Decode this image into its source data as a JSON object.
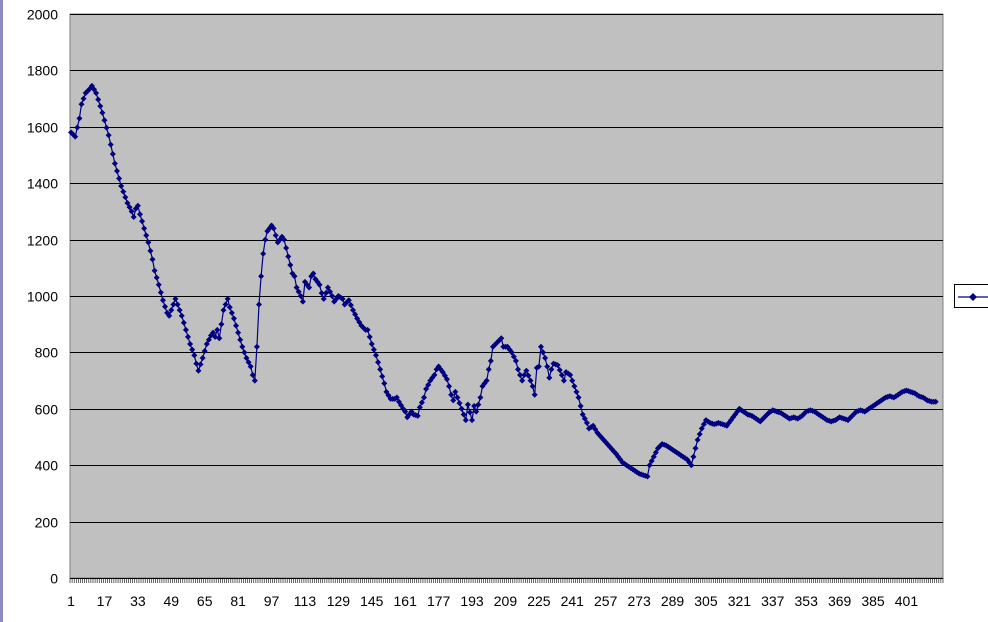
{
  "colors": {
    "plot_background": "#c0c0c0",
    "gridline": "#000000",
    "series": "#000080",
    "left_stripe": "#8c8cc0"
  },
  "legend": {
    "entries": [
      ""
    ],
    "placement": "right"
  },
  "chart_data": {
    "type": "line",
    "title": "",
    "xlabel": "",
    "ylabel": "",
    "grid": true,
    "ylim": [
      0,
      2000
    ],
    "yticks": [
      "0",
      "200",
      "400",
      "600",
      "800",
      "1000",
      "1200",
      "1400",
      "1600",
      "1800",
      "2000"
    ],
    "xticks": [
      "1",
      "17",
      "33",
      "49",
      "65",
      "81",
      "97",
      "113",
      "129",
      "145",
      "161",
      "177",
      "193",
      "209",
      "225",
      "241",
      "257",
      "273",
      "289",
      "305",
      "321",
      "337",
      "353",
      "369",
      "385",
      "401"
    ],
    "x_count": 418,
    "series": [
      {
        "marker": "diamond",
        "anchors": [
          [
            1,
            1580
          ],
          [
            3,
            1565
          ],
          [
            5,
            1630
          ],
          [
            6,
            1680
          ],
          [
            8,
            1720
          ],
          [
            10,
            1735
          ],
          [
            11,
            1745
          ],
          [
            13,
            1720
          ],
          [
            16,
            1650
          ],
          [
            19,
            1570
          ],
          [
            22,
            1470
          ],
          [
            25,
            1390
          ],
          [
            28,
            1330
          ],
          [
            30,
            1300
          ],
          [
            31,
            1280
          ],
          [
            32,
            1310
          ],
          [
            33,
            1320
          ],
          [
            34,
            1290
          ],
          [
            36,
            1240
          ],
          [
            38,
            1190
          ],
          [
            40,
            1130
          ],
          [
            41,
            1090
          ],
          [
            43,
            1040
          ],
          [
            45,
            985
          ],
          [
            47,
            940
          ],
          [
            48,
            930
          ],
          [
            50,
            970
          ],
          [
            51,
            990
          ],
          [
            52,
            970
          ],
          [
            54,
            930
          ],
          [
            56,
            880
          ],
          [
            58,
            830
          ],
          [
            60,
            790
          ],
          [
            61,
            760
          ],
          [
            62,
            735
          ],
          [
            64,
            780
          ],
          [
            66,
            830
          ],
          [
            68,
            860
          ],
          [
            69,
            870
          ],
          [
            70,
            855
          ],
          [
            71,
            880
          ],
          [
            72,
            850
          ],
          [
            73,
            900
          ],
          [
            74,
            950
          ],
          [
            76,
            990
          ],
          [
            77,
            960
          ],
          [
            79,
            920
          ],
          [
            81,
            870
          ],
          [
            83,
            820
          ],
          [
            85,
            780
          ],
          [
            87,
            750
          ],
          [
            88,
            720
          ],
          [
            89,
            700
          ],
          [
            90,
            820
          ],
          [
            91,
            970
          ],
          [
            92,
            1070
          ],
          [
            93,
            1150
          ],
          [
            94,
            1200
          ],
          [
            95,
            1230
          ],
          [
            97,
            1250
          ],
          [
            98,
            1240
          ],
          [
            100,
            1190
          ],
          [
            101,
            1200
          ],
          [
            102,
            1210
          ],
          [
            103,
            1200
          ],
          [
            105,
            1140
          ],
          [
            107,
            1080
          ],
          [
            108,
            1070
          ],
          [
            109,
            1030
          ],
          [
            111,
            1000
          ],
          [
            112,
            980
          ],
          [
            113,
            1050
          ],
          [
            115,
            1030
          ],
          [
            116,
            1070
          ],
          [
            117,
            1080
          ],
          [
            118,
            1060
          ],
          [
            120,
            1040
          ],
          [
            121,
            1010
          ],
          [
            122,
            990
          ],
          [
            124,
            1030
          ],
          [
            126,
            1000
          ],
          [
            127,
            980
          ],
          [
            129,
            1000
          ],
          [
            131,
            990
          ],
          [
            132,
            970
          ],
          [
            134,
            985
          ],
          [
            136,
            950
          ],
          [
            138,
            920
          ],
          [
            140,
            895
          ],
          [
            142,
            880
          ],
          [
            143,
            880
          ],
          [
            145,
            830
          ],
          [
            147,
            790
          ],
          [
            149,
            740
          ],
          [
            151,
            690
          ],
          [
            152,
            660
          ],
          [
            154,
            635
          ],
          [
            156,
            635
          ],
          [
            157,
            640
          ],
          [
            158,
            625
          ],
          [
            160,
            600
          ],
          [
            161,
            590
          ],
          [
            162,
            570
          ],
          [
            164,
            590
          ],
          [
            165,
            580
          ],
          [
            167,
            575
          ],
          [
            168,
            605
          ],
          [
            170,
            640
          ],
          [
            171,
            670
          ],
          [
            173,
            700
          ],
          [
            175,
            720
          ],
          [
            176,
            740
          ],
          [
            177,
            750
          ],
          [
            179,
            730
          ],
          [
            181,
            705
          ],
          [
            182,
            680
          ],
          [
            183,
            650
          ],
          [
            184,
            630
          ],
          [
            185,
            660
          ],
          [
            187,
            620
          ],
          [
            189,
            580
          ],
          [
            190,
            560
          ],
          [
            191,
            615
          ],
          [
            193,
            560
          ],
          [
            194,
            610
          ],
          [
            195,
            590
          ],
          [
            197,
            640
          ],
          [
            198,
            680
          ],
          [
            200,
            700
          ],
          [
            201,
            740
          ],
          [
            202,
            770
          ],
          [
            203,
            820
          ],
          [
            205,
            835
          ],
          [
            207,
            850
          ],
          [
            208,
            820
          ],
          [
            210,
            820
          ],
          [
            212,
            800
          ],
          [
            214,
            770
          ],
          [
            215,
            740
          ],
          [
            216,
            720
          ],
          [
            217,
            700
          ],
          [
            218,
            720
          ],
          [
            219,
            735
          ],
          [
            221,
            700
          ],
          [
            222,
            680
          ],
          [
            223,
            650
          ],
          [
            224,
            745
          ],
          [
            225,
            750
          ],
          [
            226,
            820
          ],
          [
            228,
            780
          ],
          [
            229,
            750
          ],
          [
            230,
            710
          ],
          [
            231,
            740
          ],
          [
            232,
            760
          ],
          [
            234,
            755
          ],
          [
            236,
            720
          ],
          [
            237,
            700
          ],
          [
            238,
            730
          ],
          [
            240,
            720
          ],
          [
            242,
            680
          ],
          [
            244,
            640
          ],
          [
            246,
            580
          ],
          [
            248,
            550
          ],
          [
            249,
            530
          ],
          [
            251,
            540
          ],
          [
            253,
            515
          ],
          [
            256,
            490
          ],
          [
            259,
            465
          ],
          [
            262,
            440
          ],
          [
            265,
            410
          ],
          [
            268,
            395
          ],
          [
            271,
            380
          ],
          [
            273,
            370
          ],
          [
            275,
            365
          ],
          [
            277,
            360
          ],
          [
            278,
            400
          ],
          [
            280,
            430
          ],
          [
            282,
            460
          ],
          [
            284,
            475
          ],
          [
            286,
            470
          ],
          [
            288,
            460
          ],
          [
            290,
            450
          ],
          [
            292,
            440
          ],
          [
            294,
            430
          ],
          [
            296,
            420
          ],
          [
            297,
            410
          ],
          [
            298,
            400
          ],
          [
            300,
            460
          ],
          [
            301,
            490
          ],
          [
            303,
            530
          ],
          [
            305,
            560
          ],
          [
            307,
            550
          ],
          [
            309,
            545
          ],
          [
            311,
            550
          ],
          [
            313,
            545
          ],
          [
            315,
            540
          ],
          [
            317,
            560
          ],
          [
            319,
            580
          ],
          [
            321,
            600
          ],
          [
            323,
            590
          ],
          [
            325,
            580
          ],
          [
            327,
            575
          ],
          [
            329,
            565
          ],
          [
            331,
            555
          ],
          [
            333,
            570
          ],
          [
            335,
            585
          ],
          [
            337,
            595
          ],
          [
            339,
            590
          ],
          [
            341,
            585
          ],
          [
            343,
            575
          ],
          [
            345,
            565
          ],
          [
            347,
            570
          ],
          [
            349,
            565
          ],
          [
            351,
            575
          ],
          [
            353,
            590
          ],
          [
            355,
            595
          ],
          [
            357,
            590
          ],
          [
            359,
            580
          ],
          [
            361,
            570
          ],
          [
            363,
            560
          ],
          [
            365,
            555
          ],
          [
            367,
            560
          ],
          [
            369,
            570
          ],
          [
            371,
            565
          ],
          [
            373,
            560
          ],
          [
            375,
            575
          ],
          [
            377,
            590
          ],
          [
            379,
            595
          ],
          [
            381,
            590
          ],
          [
            383,
            600
          ],
          [
            385,
            610
          ],
          [
            387,
            620
          ],
          [
            389,
            630
          ],
          [
            391,
            640
          ],
          [
            393,
            645
          ],
          [
            395,
            640
          ],
          [
            397,
            650
          ],
          [
            399,
            660
          ],
          [
            401,
            665
          ],
          [
            403,
            660
          ],
          [
            405,
            655
          ],
          [
            407,
            645
          ],
          [
            409,
            640
          ],
          [
            411,
            630
          ],
          [
            413,
            625
          ],
          [
            415,
            625
          ]
        ]
      }
    ]
  }
}
